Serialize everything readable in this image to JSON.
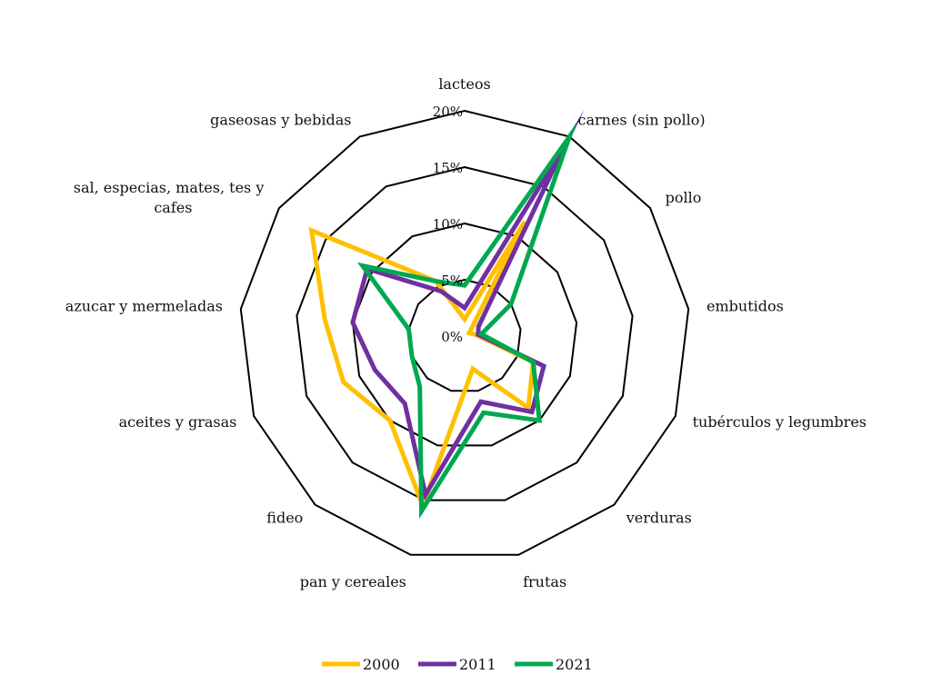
{
  "chart_data": {
    "type": "radar",
    "categories": [
      "lacteos",
      "carnes (sin pollo)",
      "pollo",
      "embutidos",
      "tubérculos y legumbres",
      "verduras",
      "frutas",
      "pan y cereales",
      "fideo",
      "aceites y grasas",
      "azucar y mermeladas",
      "sal, especias, mates, tes y cafes",
      "gaseosas y bebidas"
    ],
    "category_lines": [
      [
        "lacteos"
      ],
      [
        "carnes (sin pollo)"
      ],
      [
        "pollo"
      ],
      [
        "embutidos"
      ],
      [
        "tubérculos y legumbres"
      ],
      [
        "verduras"
      ],
      [
        "frutas"
      ],
      [
        "pan y cereales"
      ],
      [
        "fideo"
      ],
      [
        "aceites y grasas"
      ],
      [
        "azucar y mermeladas"
      ],
      [
        "sal, especias, mates, tes y",
        "cafes"
      ],
      [
        "gaseosas y bebidas"
      ]
    ],
    "rmin": 0,
    "rmax": 20,
    "ticks": [
      0,
      5,
      10,
      15,
      20
    ],
    "tick_labels": [
      "0%",
      "5%",
      "10%",
      "15%",
      "20%"
    ],
    "series": [
      {
        "name": "2000",
        "color": "#FFC000",
        "values": [
          1.5,
          11.5,
          0.5,
          1.0,
          6.5,
          8.5,
          3.0,
          15.5,
          10.0,
          11.5,
          12.5,
          16.5,
          5.5
        ]
      },
      {
        "name": "2011",
        "color": "#7030A0",
        "values": [
          2.5,
          19.0,
          1.5,
          1.2,
          7.5,
          9.0,
          6.0,
          14.5,
          8.0,
          8.5,
          10.0,
          10.5,
          4.5
        ]
      },
      {
        "name": "2021",
        "color": "#00A850",
        "values": [
          4.5,
          20.0,
          5.0,
          1.5,
          6.5,
          10.0,
          7.0,
          16.0,
          6.0,
          5.0,
          5.0,
          11.0,
          5.5
        ]
      }
    ],
    "legend_position": "bottom",
    "grid": true
  }
}
